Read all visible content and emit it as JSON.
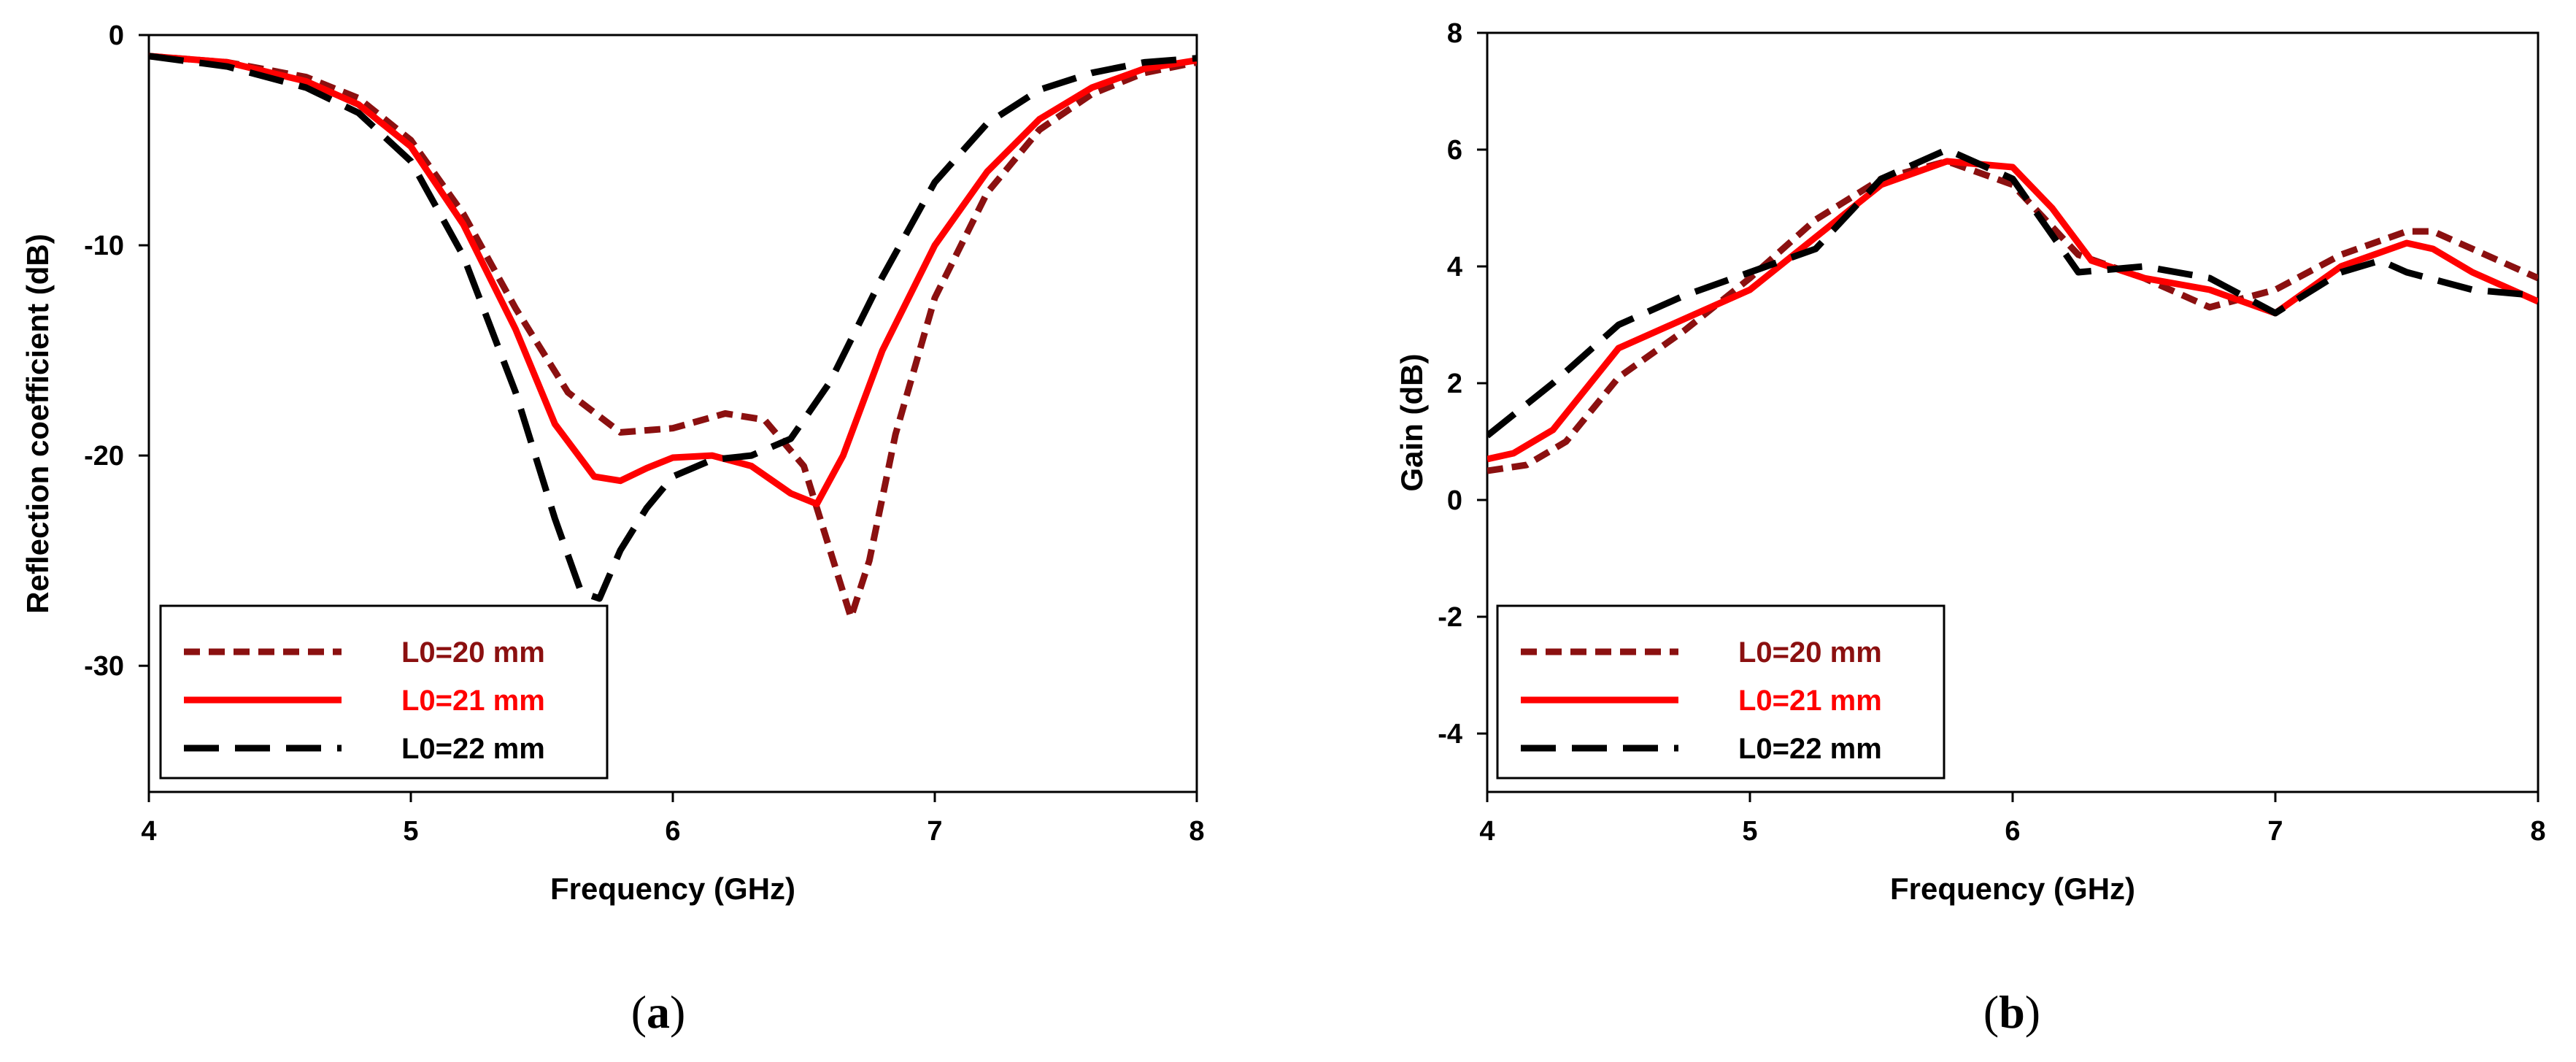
{
  "chart_data": [
    {
      "type": "line",
      "panel": "a",
      "caption_prefix": "(",
      "caption_letter": "a",
      "caption_suffix": ")",
      "xlabel": "Frequency (GHz)",
      "ylabel": "Reflection coefficient (dB)",
      "xlim": [
        4,
        8
      ],
      "ylim": [
        -36,
        0
      ],
      "xticks": [
        4,
        5,
        6,
        7,
        8
      ],
      "yticks": [
        0,
        -10,
        -20,
        -30
      ],
      "legend_position": "bottom-left",
      "series": [
        {
          "name": "L0=20 mm",
          "color": "#8b1010",
          "style": "short-dash",
          "x": [
            4.0,
            4.3,
            4.6,
            4.8,
            5.0,
            5.2,
            5.4,
            5.6,
            5.8,
            6.0,
            6.2,
            6.35,
            6.5,
            6.6,
            6.68,
            6.75,
            6.85,
            7.0,
            7.2,
            7.4,
            7.6,
            7.8,
            8.0
          ],
          "y": [
            -1.0,
            -1.3,
            -2.0,
            -3.0,
            -5.0,
            -8.5,
            -13.0,
            -17.0,
            -18.9,
            -18.7,
            -18.0,
            -18.3,
            -20.5,
            -24.5,
            -27.7,
            -25.0,
            -19.0,
            -12.5,
            -7.5,
            -4.5,
            -2.8,
            -1.8,
            -1.3
          ]
        },
        {
          "name": "L0=21 mm",
          "color": "#ff0000",
          "style": "solid",
          "x": [
            4.0,
            4.3,
            4.6,
            4.8,
            5.0,
            5.2,
            5.4,
            5.55,
            5.7,
            5.8,
            5.9,
            6.0,
            6.15,
            6.3,
            6.45,
            6.55,
            6.65,
            6.8,
            7.0,
            7.2,
            7.4,
            7.6,
            7.8,
            8.0
          ],
          "y": [
            -1.0,
            -1.3,
            -2.2,
            -3.3,
            -5.3,
            -9.0,
            -14.0,
            -18.5,
            -21.0,
            -21.2,
            -20.6,
            -20.1,
            -20.0,
            -20.5,
            -21.8,
            -22.3,
            -20.0,
            -15.0,
            -10.0,
            -6.5,
            -4.0,
            -2.5,
            -1.6,
            -1.2
          ]
        },
        {
          "name": "L0=22 mm",
          "color": "#000000",
          "style": "long-dash",
          "x": [
            4.0,
            4.3,
            4.6,
            4.8,
            5.0,
            5.2,
            5.4,
            5.55,
            5.65,
            5.72,
            5.8,
            5.9,
            6.0,
            6.15,
            6.3,
            6.45,
            6.6,
            6.8,
            7.0,
            7.2,
            7.4,
            7.6,
            7.8,
            8.0
          ],
          "y": [
            -1.0,
            -1.5,
            -2.5,
            -3.7,
            -6.0,
            -10.5,
            -17.0,
            -23.0,
            -26.5,
            -26.8,
            -24.5,
            -22.5,
            -21.0,
            -20.2,
            -20.0,
            -19.2,
            -16.5,
            -11.5,
            -7.0,
            -4.2,
            -2.6,
            -1.8,
            -1.3,
            -1.1
          ]
        }
      ]
    },
    {
      "type": "line",
      "panel": "b",
      "caption_prefix": "(",
      "caption_letter": "b",
      "caption_suffix": ")",
      "xlabel": "Frequency (GHz)",
      "ylabel": "Gain (dB)",
      "xlim": [
        4,
        8
      ],
      "ylim": [
        -5,
        8
      ],
      "xticks": [
        4,
        5,
        6,
        7,
        8
      ],
      "yticks": [
        8,
        6,
        4,
        2,
        0,
        -2,
        -4
      ],
      "legend_position": "bottom-left",
      "series": [
        {
          "name": "L0=20 mm",
          "color": "#8b1010",
          "style": "short-dash",
          "x": [
            4.0,
            4.15,
            4.3,
            4.5,
            4.75,
            5.0,
            5.25,
            5.5,
            5.75,
            6.0,
            6.25,
            6.5,
            6.75,
            7.0,
            7.25,
            7.5,
            7.6,
            7.75,
            8.0
          ],
          "y": [
            0.5,
            0.6,
            1.0,
            2.1,
            2.9,
            3.8,
            4.8,
            5.5,
            5.8,
            5.4,
            4.2,
            3.8,
            3.3,
            3.6,
            4.2,
            4.6,
            4.6,
            4.3,
            3.8
          ]
        },
        {
          "name": "L0=21 mm",
          "color": "#ff0000",
          "style": "solid",
          "x": [
            4.0,
            4.1,
            4.25,
            4.5,
            4.75,
            5.0,
            5.25,
            5.5,
            5.75,
            6.0,
            6.15,
            6.3,
            6.5,
            6.75,
            7.0,
            7.25,
            7.5,
            7.6,
            7.75,
            8.0
          ],
          "y": [
            0.7,
            0.8,
            1.2,
            2.6,
            3.1,
            3.6,
            4.5,
            5.4,
            5.8,
            5.7,
            5.0,
            4.1,
            3.8,
            3.6,
            3.2,
            4.0,
            4.4,
            4.3,
            3.9,
            3.4
          ]
        },
        {
          "name": "L0=22 mm",
          "color": "#000000",
          "style": "long-dash",
          "x": [
            4.0,
            4.25,
            4.5,
            4.75,
            5.0,
            5.25,
            5.5,
            5.75,
            6.0,
            6.25,
            6.5,
            6.75,
            7.0,
            7.25,
            7.4,
            7.5,
            7.75,
            8.0
          ],
          "y": [
            1.1,
            2.0,
            3.0,
            3.5,
            3.9,
            4.3,
            5.5,
            6.0,
            5.5,
            3.9,
            4.0,
            3.8,
            3.2,
            3.9,
            4.1,
            3.9,
            3.6,
            3.5
          ]
        }
      ]
    }
  ]
}
